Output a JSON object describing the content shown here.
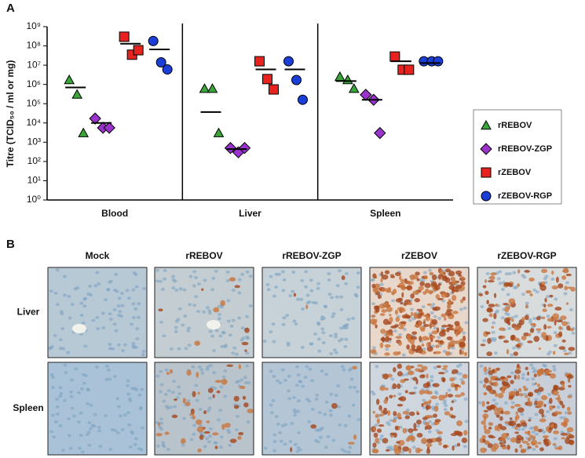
{
  "panel_labels": [
    "A",
    "B"
  ],
  "chart_data": {
    "type": "scatter",
    "log_y": true,
    "y_label": "Titre (TCID₅₀ / ml or mg)",
    "categories": [
      "Blood",
      "Liver",
      "Spleen"
    ],
    "ylim": [
      1,
      1000000000
    ],
    "yticks": [
      {
        "value": 1,
        "label": "10⁰"
      },
      {
        "value": 10,
        "label": "10¹"
      },
      {
        "value": 100,
        "label": "10²"
      },
      {
        "value": 1000,
        "label": "10³"
      },
      {
        "value": 10000,
        "label": "10⁴"
      },
      {
        "value": 100000,
        "label": "10⁵"
      },
      {
        "value": 1000000,
        "label": "10⁶"
      },
      {
        "value": 10000000,
        "label": "10⁷"
      },
      {
        "value": 100000000,
        "label": "10⁸"
      },
      {
        "value": 1000000000,
        "label": "10⁹"
      }
    ],
    "legend": "right",
    "series": [
      {
        "name": "rREBOV",
        "color": "#3aa53a",
        "marker": "triangle",
        "values": [
          [
            1700000,
            300000,
            3000
          ],
          [
            600000,
            600000,
            3000
          ],
          [
            2500000,
            1700000,
            600000
          ]
        ],
        "means": [
          700000,
          37000,
          1500000
        ]
      },
      {
        "name": "rREBOV-ZGP",
        "color": "#9933cc",
        "marker": "diamond",
        "values": [
          [
            17000,
            5600,
            5600
          ],
          [
            500,
            300,
            500
          ],
          [
            290000,
            160000,
            3000
          ]
        ],
        "means": [
          10000,
          440,
          160000
        ]
      },
      {
        "name": "rZEBOV",
        "color": "#e8231f",
        "marker": "square",
        "values": [
          [
            300000000,
            35000000,
            60000000
          ],
          [
            16000000,
            1900000,
            550000
          ],
          [
            28000000,
            5800000,
            5800000
          ]
        ],
        "means": [
          130000000,
          6000000,
          16000000
        ]
      },
      {
        "name": "rZEBOV-RGP",
        "color": "#1a3ed6",
        "marker": "circle",
        "values": [
          [
            180000000,
            14000000,
            6000000
          ],
          [
            16000000,
            1700000,
            160000
          ],
          [
            16000000,
            16000000,
            16000000
          ]
        ],
        "means": [
          66000000,
          6000000,
          13000000
        ]
      }
    ]
  },
  "panel_b": {
    "columns": [
      "Mock",
      "rREBOV",
      "rREBOV-ZGP",
      "rZEBOV",
      "rZEBOV-RGP"
    ],
    "rows": [
      "Liver",
      "Spleen"
    ]
  }
}
